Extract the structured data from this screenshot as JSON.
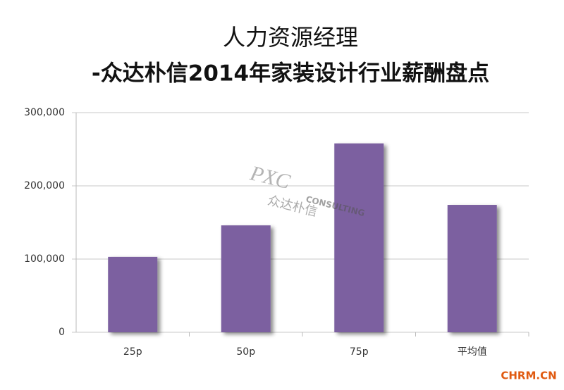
{
  "chart_data": {
    "type": "bar",
    "title": "人力资源经理",
    "subtitle": "-众达朴信2014年家装设计行业薪酬盘点",
    "categories": [
      "25p",
      "50p",
      "75p",
      "平均值"
    ],
    "values": [
      103000,
      146000,
      258000,
      174000
    ],
    "color": "#7b60a0",
    "ylim": [
      0,
      300000
    ],
    "yticks": [
      0,
      {
        "value": 100000,
        "label": "100,000"
      },
      {
        "value": 200000,
        "label": "200,000"
      },
      {
        "value": 300000,
        "label": "300,000"
      }
    ],
    "grid": true
  },
  "watermarks": [
    "PXC",
    "CONSULTING",
    "众达朴信",
    "CHRM.CN"
  ]
}
